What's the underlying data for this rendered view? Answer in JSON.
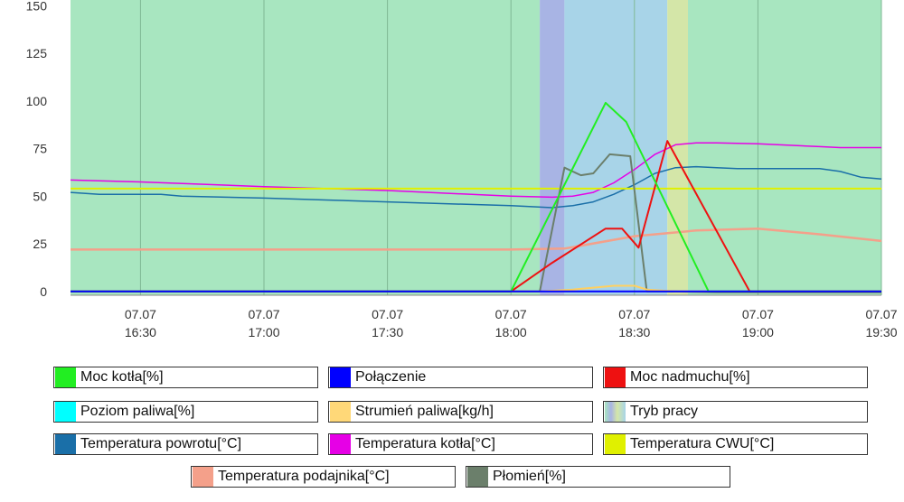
{
  "chart_data": {
    "type": "line",
    "x_axis": {
      "ticks": [
        {
          "date": "07.07",
          "time": "16:30"
        },
        {
          "date": "07.07",
          "time": "17:00"
        },
        {
          "date": "07.07",
          "time": "17:30"
        },
        {
          "date": "07.07",
          "time": "18:00"
        },
        {
          "date": "07.07",
          "time": "18:30"
        },
        {
          "date": "07.07",
          "time": "19:00"
        },
        {
          "date": "07.07",
          "time": "19:30"
        }
      ],
      "range": [
        "16:13",
        "19:30"
      ]
    },
    "y_axis": {
      "ticks": [
        "0",
        "25",
        "50",
        "75",
        "100",
        "125",
        "150"
      ],
      "range": [
        -2,
        153
      ]
    },
    "grid": "vertical",
    "bands": [
      {
        "from": "16:13",
        "to": "18:07",
        "color": "#a8e6c0"
      },
      {
        "from": "18:07",
        "to": "18:13",
        "color": "#a8b4e4"
      },
      {
        "from": "18:13",
        "to": "18:38",
        "color": "#a8d4e8"
      },
      {
        "from": "18:38",
        "to": "18:43",
        "color": "#d4e6a8"
      },
      {
        "from": "18:43",
        "to": "19:30",
        "color": "#a8e6c0"
      }
    ],
    "series": [
      {
        "name": "Temperatura podajnika[°C]",
        "color": "#f4a08a",
        "width": 2.5,
        "x": [
          "16:13",
          "17:00",
          "18:00",
          "18:13",
          "18:30",
          "18:45",
          "19:00",
          "19:15",
          "19:30"
        ],
        "y": [
          22,
          22,
          22,
          22.5,
          29,
          32,
          33,
          30,
          26.5
        ]
      },
      {
        "name": "Temperatura powrotu[°C]",
        "color": "#1a6fa8",
        "width": 1.5,
        "x": [
          "16:13",
          "16:20",
          "16:35",
          "16:40",
          "17:00",
          "17:15",
          "17:30",
          "17:45",
          "18:00",
          "18:10",
          "18:15",
          "18:20",
          "18:25",
          "18:30",
          "18:35",
          "18:40",
          "18:45",
          "18:50",
          "18:55",
          "19:00",
          "19:15",
          "19:20",
          "19:25",
          "19:30"
        ],
        "y": [
          52,
          51,
          51,
          50,
          49,
          48,
          47,
          46,
          45,
          44,
          45,
          47,
          51,
          56,
          62,
          65,
          65.5,
          65,
          64.5,
          64.5,
          64.5,
          63,
          60,
          59
        ]
      },
      {
        "name": "Temperatura kotła[°C]",
        "color": "#e600e6",
        "width": 1.5,
        "x": [
          "16:13",
          "16:30",
          "17:00",
          "17:30",
          "18:00",
          "18:10",
          "18:15",
          "18:20",
          "18:25",
          "18:30",
          "18:35",
          "18:40",
          "18:45",
          "18:50",
          "19:00",
          "19:15",
          "19:20",
          "19:30"
        ],
        "y": [
          58.5,
          57.5,
          55,
          53,
          50,
          49.5,
          50,
          52,
          57,
          64,
          72,
          77,
          78,
          78,
          77.5,
          76,
          75.5,
          75.5
        ]
      },
      {
        "name": "Temperatura CWU[°C]",
        "color": "#e0f000",
        "width": 2,
        "x": [
          "16:13",
          "19:30"
        ],
        "y": [
          54,
          54
        ]
      },
      {
        "name": "Płomień[%]",
        "color": "#6b7f6b",
        "width": 2,
        "x": [
          "16:13",
          "18:07",
          "18:13",
          "18:17",
          "18:20",
          "18:24",
          "18:29",
          "18:33",
          "18:38",
          "18:50",
          "19:30"
        ],
        "y": [
          0,
          0,
          65,
          61,
          62,
          72,
          71,
          0,
          0,
          -0.5,
          -0.5
        ]
      },
      {
        "name": "Strumień paliwa[kg/h]",
        "color": "#ffd060",
        "width": 2,
        "x": [
          "16:13",
          "18:07",
          "18:15",
          "18:20",
          "18:25",
          "18:30",
          "18:33",
          "18:40",
          "19:30"
        ],
        "y": [
          0,
          0,
          1,
          2,
          3,
          3,
          1,
          0,
          0
        ]
      },
      {
        "name": "Moc nadmuchu[%]",
        "color": "#ee1111",
        "width": 2,
        "x": [
          "16:13",
          "18:00",
          "18:10",
          "18:23",
          "18:27",
          "18:31",
          "18:38",
          "18:58",
          "19:30"
        ],
        "y": [
          0,
          0,
          15,
          33,
          33,
          23,
          79,
          0,
          0
        ]
      },
      {
        "name": "Moc kotła[%]",
        "color": "#22ee22",
        "width": 2,
        "x": [
          "16:13",
          "18:00",
          "18:23",
          "18:28",
          "18:48",
          "19:30"
        ],
        "y": [
          0,
          0,
          99,
          89,
          0,
          0
        ]
      },
      {
        "name": "Połączenie",
        "color": "#0000ff",
        "width": 2,
        "x": [
          "16:13",
          "19:30"
        ],
        "y": [
          0,
          0
        ]
      },
      {
        "name": "Poziom paliwa[%]",
        "color": "#00ffff",
        "width": 0,
        "x": [],
        "y": []
      }
    ]
  },
  "legend": [
    {
      "label": "Moc kotła[%]",
      "color": "#22ee22"
    },
    {
      "label": "Połączenie",
      "color": "#0000ff"
    },
    {
      "label": "Moc nadmuchu[%]",
      "color": "#ee1111"
    },
    {
      "label": "Poziom paliwa[%]",
      "color": "#00ffff"
    },
    {
      "label": "Strumień paliwa[kg/h]",
      "color": "#ffd878"
    },
    {
      "label": "Tryb pracy",
      "color": "gradient"
    },
    {
      "label": "Temperatura powrotu[°C]",
      "color": "#1a6fa8"
    },
    {
      "label": "Temperatura kotła[°C]",
      "color": "#e600e6"
    },
    {
      "label": "Temperatura CWU[°C]",
      "color": "#e0f000"
    },
    {
      "label": "Temperatura podajnika[°C]",
      "color": "#f4a08a"
    },
    {
      "label": "Płomień[%]",
      "color": "#6b7f6b"
    }
  ]
}
